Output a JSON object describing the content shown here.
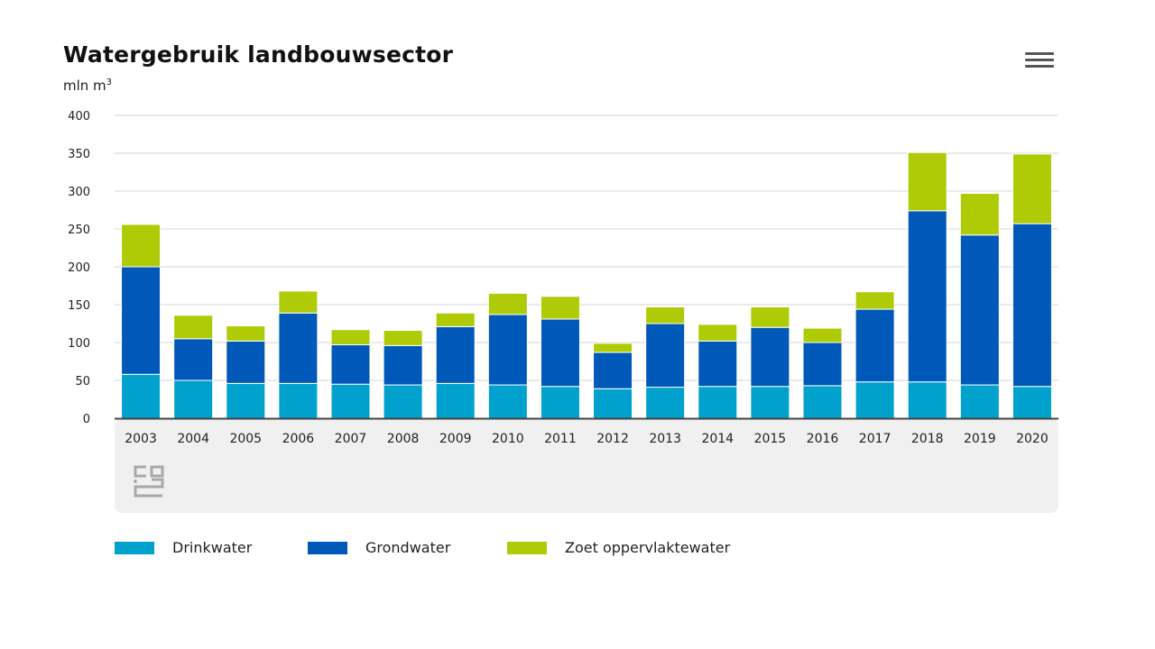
{
  "menu": {
    "icon": "hamburger-menu-icon"
  },
  "footer": {
    "logo_icon": "cbs-logo-icon"
  },
  "chart_data": {
    "type": "bar",
    "stacked": true,
    "title": "Watergebruik landbouwsector",
    "unit_label": "mln m",
    "unit_superscript": "3",
    "categories": [
      "2003",
      "2004",
      "2005",
      "2006",
      "2007",
      "2008",
      "2009",
      "2010",
      "2011",
      "2012",
      "2013",
      "2014",
      "2015",
      "2016",
      "2017",
      "2018",
      "2019",
      "2020"
    ],
    "series": [
      {
        "name": "Drinkwater",
        "color": "#00a1cd",
        "values": [
          58,
          50,
          46,
          46,
          45,
          44,
          46,
          44,
          42,
          39,
          41,
          42,
          42,
          43,
          48,
          48,
          44,
          42
        ]
      },
      {
        "name": "Grondwater",
        "color": "#0058b8",
        "values": [
          142,
          55,
          56,
          93,
          52,
          52,
          75,
          93,
          89,
          48,
          84,
          60,
          78,
          57,
          96,
          226,
          198,
          215
        ]
      },
      {
        "name": "Zoet oppervlaktewater",
        "color": "#afcb05",
        "values": [
          56,
          31,
          20,
          29,
          20,
          20,
          18,
          28,
          30,
          12,
          22,
          22,
          27,
          19,
          23,
          77,
          55,
          92
        ]
      }
    ],
    "ylim": [
      0,
      400
    ],
    "yticks": [
      0,
      50,
      100,
      150,
      200,
      250,
      300,
      350,
      400
    ],
    "grid": true,
    "legend_position": "bottom"
  }
}
